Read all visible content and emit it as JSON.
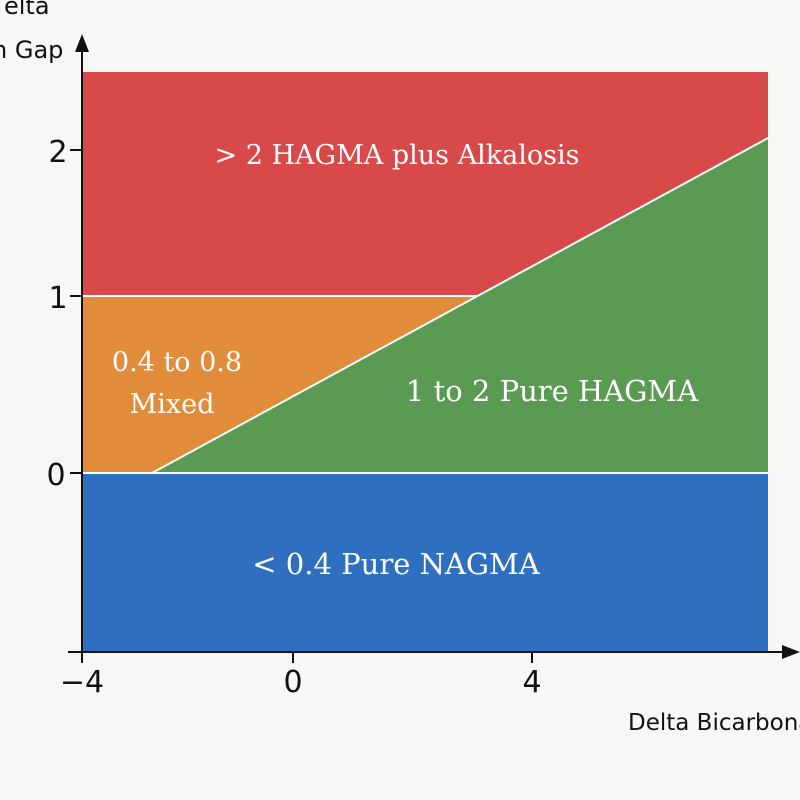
{
  "colors": {
    "background": "#f7f7f5",
    "hagma_plus_alkalosis": "#d84a4a",
    "mixed": "#e08c3a",
    "pure_hagma": "#5a9a52",
    "pure_nagma": "#2f6fbf",
    "axis": "#111111",
    "boundary": "#ffffff"
  },
  "axes": {
    "y_title_line1": "elta",
    "y_title_line2": "n Gap",
    "x_title": "Delta Bicarbona",
    "y_ticks": [
      "2",
      "1",
      "0"
    ],
    "x_ticks": [
      "−4",
      "0",
      "4"
    ]
  },
  "regions": {
    "hagma_plus_alkalosis": "> 2 HAGMA plus Alkalosis",
    "mixed_line1": "0.4 to 0.8",
    "mixed_line2": "Mixed",
    "pure_hagma": "1 to 2 Pure HAGMA",
    "pure_nagma": "< 0.4 Pure NAGMA"
  }
}
